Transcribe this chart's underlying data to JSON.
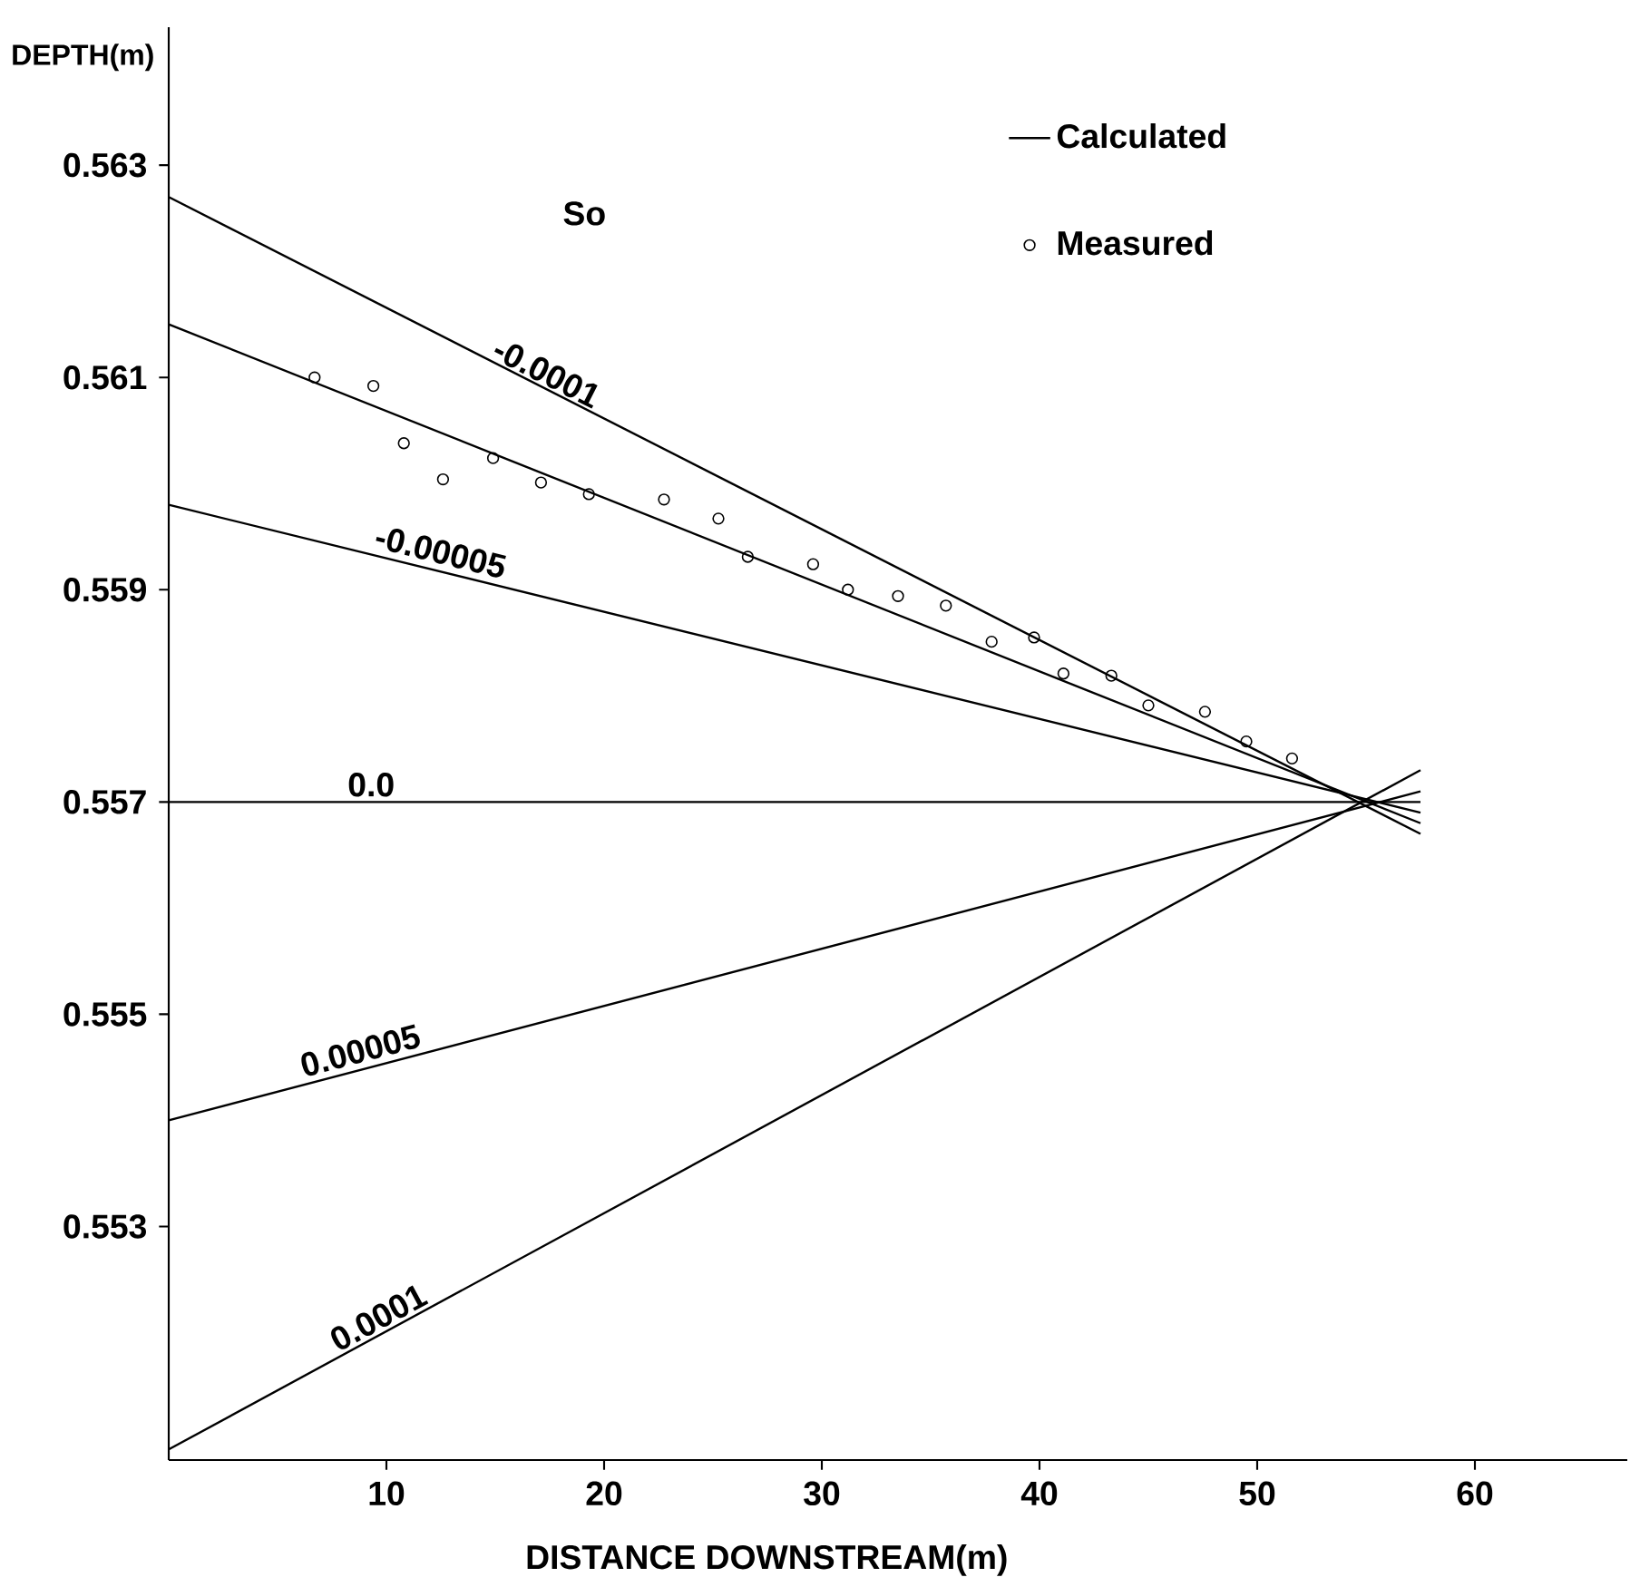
{
  "chart_data": {
    "type": "line",
    "xlabel": "DISTANCE DOWNSTREAM(m)",
    "ylabel": "DEPTH(m)",
    "xlim": [
      0,
      67
    ],
    "ylim": [
      0.5508,
      0.5643
    ],
    "xticks": [
      10,
      20,
      30,
      40,
      50,
      60
    ],
    "yticks": [
      0.553,
      0.555,
      0.557,
      0.559,
      0.561,
      0.563
    ],
    "legend": "top right",
    "line_style": "solid",
    "series": [
      {
        "name": "Calculated",
        "color": "#000000",
        "x": [
          0,
          57.5
        ],
        "values": [
          0.5627,
          0.5567
        ]
      },
      {
        "color": "#000000",
        "x": [
          0,
          57.5
        ],
        "values": [
          0.5615,
          0.5568
        ]
      },
      {
        "color": "#000000",
        "x": [
          0,
          57.5
        ],
        "values": [
          0.5598,
          0.5569
        ]
      },
      {
        "color": "#000000",
        "x": [
          0,
          57.5
        ],
        "values": [
          0.557,
          0.557
        ]
      },
      {
        "color": "#000000",
        "x": [
          0,
          57.5
        ],
        "values": [
          0.554,
          0.5571
        ]
      },
      {
        "color": "#000000",
        "x": [
          0,
          57.5
        ],
        "values": [
          0.5509,
          0.5573
        ]
      },
      {
        "name": "Measured",
        "type": "scatter",
        "marker": "circle",
        "color": "#000000",
        "x": [
          6.7,
          9.4,
          10.8,
          12.6,
          14.9,
          17.1,
          19.3,
          22.75,
          25.25,
          26.6,
          29.6,
          31.2,
          33.5,
          35.7,
          37.8,
          39.75,
          41.1,
          43.3,
          45.0,
          47.6,
          49.5,
          51.6
        ],
        "values": [
          0.561,
          0.56092,
          0.56038,
          0.56004,
          0.56024,
          0.56001,
          0.5599,
          0.55985,
          0.55967,
          0.55931,
          0.55924,
          0.559,
          0.55894,
          0.55885,
          0.55851,
          0.55855,
          0.55821,
          0.55819,
          0.55791,
          0.55785,
          0.55757,
          0.55741
        ]
      }
    ],
    "annotations": [
      "So",
      {
        "text": "-0.0001",
        "x": 17,
        "y": 0.5609
      },
      {
        "text": "-0.00005",
        "x": 12.3,
        "y": 0.5592
      },
      {
        "text": "0.0",
        "x": 9.3,
        "y": 0.557
      },
      {
        "text": "0.00005",
        "x": 9,
        "y": 0.5545
      },
      {
        "text": "0.0001",
        "x": 10,
        "y": 0.552
      }
    ]
  }
}
